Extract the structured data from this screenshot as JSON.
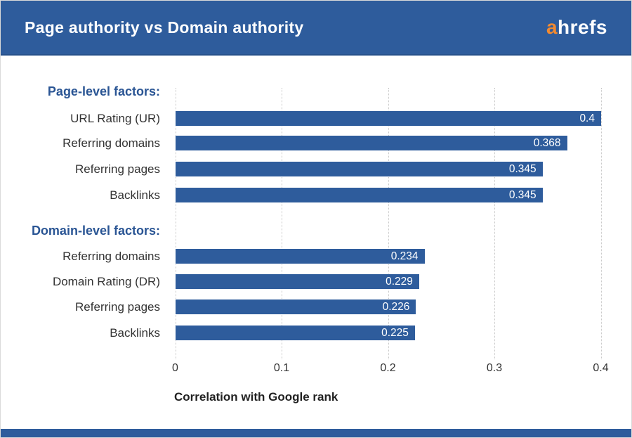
{
  "header": {
    "title": "Page authority vs Domain authority",
    "logo_accent_text": "a",
    "logo_rest_text": "hrefs"
  },
  "colors": {
    "header_bg": "#2e5c9c",
    "bar": "#2e5c9c",
    "section_heading": "#2a5594",
    "logo_accent": "#f28a30",
    "label_text": "#333333",
    "tick_text": "#333333",
    "value_text": "#ffffff",
    "gridline": "#c8c8c8"
  },
  "chart_data": {
    "type": "bar",
    "orientation": "horizontal",
    "title": "Page authority vs Domain authority",
    "xlabel": "Correlation with Google rank",
    "xlim": [
      0,
      0.4
    ],
    "x_ticks": [
      "0",
      "0.1",
      "0.2",
      "0.3",
      "0.4"
    ],
    "grid": "vertical-dotted",
    "legend": "none",
    "groups": [
      {
        "heading": "Page-level factors:",
        "items": [
          {
            "label": "URL Rating (UR)",
            "value": 0.4,
            "value_label": "0.4"
          },
          {
            "label": "Referring domains",
            "value": 0.368,
            "value_label": "0.368"
          },
          {
            "label": "Referring pages",
            "value": 0.345,
            "value_label": "0.345"
          },
          {
            "label": "Backlinks",
            "value": 0.345,
            "value_label": "0.345"
          }
        ]
      },
      {
        "heading": "Domain-level factors:",
        "items": [
          {
            "label": "Referring domains",
            "value": 0.234,
            "value_label": "0.234"
          },
          {
            "label": "Domain Rating (DR)",
            "value": 0.229,
            "value_label": "0.229"
          },
          {
            "label": "Referring pages",
            "value": 0.226,
            "value_label": "0.226"
          },
          {
            "label": "Backlinks",
            "value": 0.225,
            "value_label": "0.225"
          }
        ]
      }
    ]
  }
}
